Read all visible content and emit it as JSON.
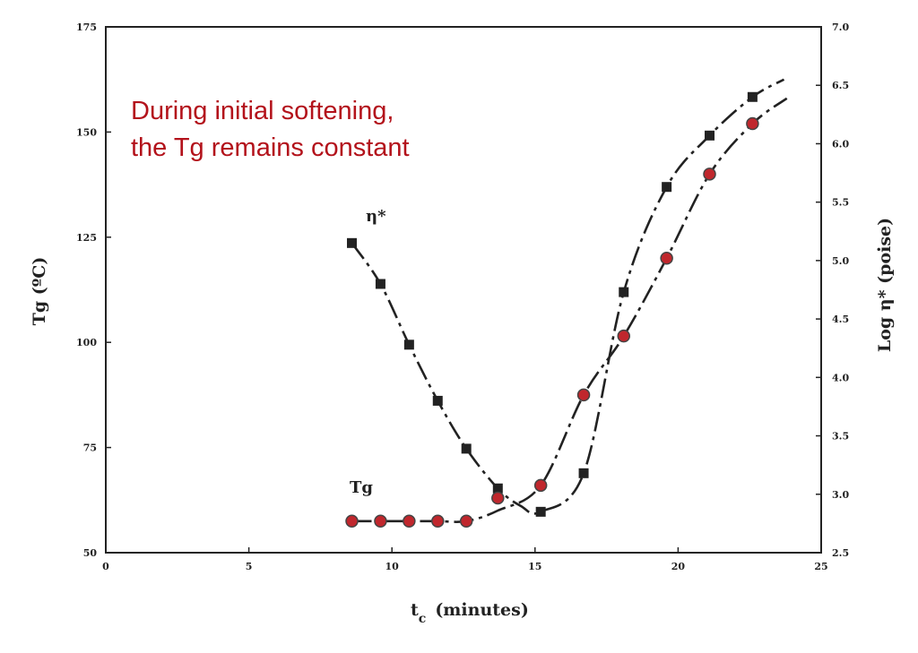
{
  "chart_data": {
    "type": "scatter",
    "xlabel": "t",
    "xlabel_subscript": "c",
    "xlabel_suffix": "(minutes)",
    "xlim": [
      0,
      25
    ],
    "x_ticks": [
      "0",
      "5",
      "10",
      "15",
      "20",
      "25"
    ],
    "ylabel_left": "Tg (ºC)",
    "ylim_left": [
      50,
      175
    ],
    "y_ticks_left": [
      "50",
      "75",
      "100",
      "125",
      "150",
      "175"
    ],
    "ylabel_right": "Log η* (poise)",
    "ylim_right": [
      2.5,
      7.0
    ],
    "y_ticks_right": [
      "2.5",
      "3.0",
      "3.5",
      "4.0",
      "4.5",
      "5.0",
      "5.5",
      "6.0",
      "6.5",
      "7.0"
    ],
    "annotation": [
      "During initial softening,",
      "the Tg remains constant"
    ],
    "grid": false,
    "series": [
      {
        "name": "η*",
        "axis": "right",
        "marker": "square",
        "color": "#222222",
        "x": [
          8.6,
          9.6,
          10.6,
          11.6,
          12.6,
          13.7,
          15.2,
          16.7,
          18.1,
          19.6,
          21.1,
          22.6
        ],
        "y": [
          5.15,
          4.8,
          4.28,
          3.8,
          3.39,
          3.05,
          2.85,
          3.18,
          4.73,
          5.63,
          6.07,
          6.4
        ],
        "curve_x": [
          8.6,
          9.6,
          10.6,
          11.6,
          12.6,
          13.7,
          14.5,
          15.2,
          16.7,
          18.1,
          19.6,
          21.1,
          22.6,
          23.7
        ],
        "curve_y": [
          5.15,
          4.8,
          4.28,
          3.8,
          3.39,
          3.05,
          2.9,
          2.85,
          3.18,
          4.73,
          5.63,
          6.07,
          6.4,
          6.55
        ]
      },
      {
        "name": "Tg",
        "axis": "left",
        "marker": "circle",
        "color": "#c0272d",
        "x": [
          8.6,
          9.6,
          10.6,
          11.6,
          12.6,
          13.7,
          15.2,
          16.7,
          18.1,
          19.6,
          21.1,
          22.6
        ],
        "y": [
          57.5,
          57.5,
          57.5,
          57.5,
          57.5,
          63,
          66,
          87.5,
          101.5,
          120,
          140,
          152
        ],
        "curve_x": [
          8.6,
          9.6,
          10.6,
          11.6,
          12.6,
          13.7,
          15.2,
          16.7,
          18.1,
          19.6,
          21.1,
          22.6,
          23.8
        ],
        "curve_y": [
          57.5,
          57.5,
          57.5,
          57.5,
          57.5,
          60,
          66,
          87.5,
          101.5,
          120,
          140,
          152,
          158
        ]
      }
    ]
  }
}
